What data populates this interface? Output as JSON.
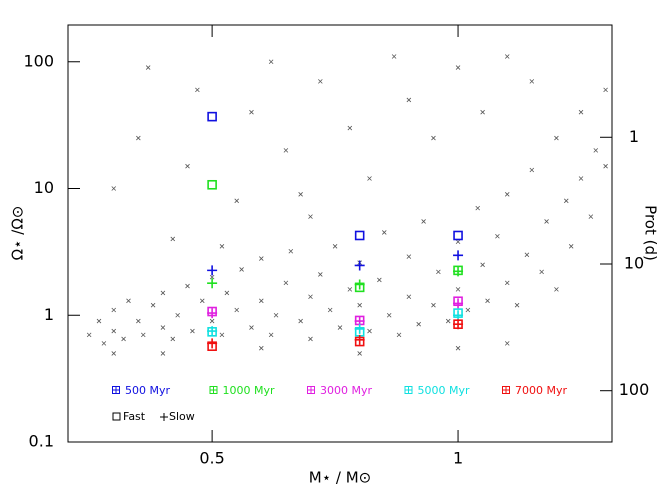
{
  "chart_data": {
    "type": "scatter",
    "xlabel": "M⋆ / M⊙",
    "ylabel": "Ω⋆ /Ω⊙",
    "y2label": "Prot (d)",
    "xlim": [
      0.207,
      1.313
    ],
    "ylim": [
      0.1,
      195
    ],
    "y2lim": [
      0.13,
      254
    ],
    "xticks": [
      0.5,
      1
    ],
    "yticks": [
      0.1,
      1,
      10,
      100
    ],
    "y2ticks": [
      1,
      10,
      100
    ],
    "ylog": true,
    "y2log": true,
    "y2inverted": true,
    "background": {
      "color": "#555555",
      "x": [
        0.25,
        0.27,
        0.28,
        0.3,
        0.3,
        0.32,
        0.33,
        0.35,
        0.36,
        0.38,
        0.4,
        0.4,
        0.42,
        0.43,
        0.45,
        0.46,
        0.48,
        0.5,
        0.5,
        0.52,
        0.53,
        0.55,
        0.56,
        0.58,
        0.6,
        0.6,
        0.62,
        0.63,
        0.65,
        0.66,
        0.68,
        0.7,
        0.7,
        0.72,
        0.74,
        0.75,
        0.76,
        0.78,
        0.8,
        0.8,
        0.82,
        0.84,
        0.85,
        0.86,
        0.88,
        0.9,
        0.9,
        0.92,
        0.93,
        0.95,
        0.96,
        0.98,
        1.0,
        1.0,
        1.02,
        1.04,
        1.05,
        1.06,
        1.08,
        1.1,
        1.1,
        1.12,
        1.14,
        1.15,
        1.17,
        1.18,
        1.2,
        1.2,
        1.22,
        1.23,
        1.25,
        1.25,
        1.27,
        1.28,
        1.3,
        1.3,
        0.3,
        0.35,
        0.37,
        0.42,
        0.45,
        0.47,
        0.55,
        0.58,
        0.62,
        0.65,
        0.7,
        0.72,
        0.78,
        0.82,
        0.87,
        0.9,
        0.95,
        1.0,
        1.05,
        1.1,
        1.15,
        0.52,
        0.68,
        0.4,
        0.6,
        0.8,
        1.0,
        1.1,
        0.3
      ],
      "y": [
        0.7,
        0.9,
        0.6,
        1.1,
        0.75,
        0.65,
        1.3,
        0.9,
        0.7,
        1.2,
        1.5,
        0.8,
        0.65,
        1.0,
        1.7,
        0.75,
        1.3,
        2.0,
        0.9,
        0.7,
        1.5,
        1.1,
        2.3,
        0.8,
        1.3,
        2.8,
        0.7,
        1.0,
        1.8,
        3.2,
        0.9,
        1.4,
        0.65,
        2.1,
        1.1,
        3.5,
        0.8,
        1.6,
        1.2,
        2.6,
        0.75,
        1.9,
        4.5,
        1.0,
        0.7,
        1.4,
        2.9,
        0.85,
        5.5,
        1.2,
        2.2,
        0.9,
        1.6,
        3.8,
        1.1,
        7,
        2.5,
        1.3,
        4.2,
        1.8,
        9,
        1.2,
        3,
        14,
        2.2,
        5.5,
        25,
        1.6,
        8,
        3.5,
        40,
        12,
        6,
        20,
        60,
        15,
        10,
        25,
        90,
        4,
        15,
        60,
        8,
        40,
        100,
        20,
        6,
        70,
        30,
        12,
        110,
        50,
        25,
        90,
        40,
        110,
        70,
        3.5,
        9,
        0.5,
        0.55,
        0.5,
        0.55,
        0.6,
        0.5
      ]
    },
    "series": [
      {
        "name": "500 Myr",
        "color": "#1010e0",
        "x": [
          0.5,
          0.8,
          1
        ],
        "fast": [
          36.9,
          4.26,
          4.26
        ],
        "slow": [
          2.26,
          2.47,
          2.97
        ]
      },
      {
        "name": "1000 Myr",
        "color": "#20e020",
        "x": [
          0.5,
          0.8,
          1
        ],
        "fast": [
          10.7,
          1.66,
          2.26
        ],
        "slow": [
          1.79,
          1.75,
          2.22
        ]
      },
      {
        "name": "3000 Myr",
        "color": "#e020e0",
        "x": [
          0.5,
          0.8,
          1
        ],
        "fast": [
          1.07,
          0.91,
          1.29
        ],
        "slow": [
          1.04,
          0.9,
          1.24
        ]
      },
      {
        "name": "5000 Myr",
        "color": "#10e0e0",
        "x": [
          0.5,
          0.8,
          1
        ],
        "fast": [
          0.74,
          0.74,
          1.04
        ],
        "slow": [
          0.75,
          0.78,
          1.0
        ]
      },
      {
        "name": "7000 Myr",
        "color": "#f01010",
        "x": [
          0.5,
          0.8,
          1
        ],
        "fast": [
          0.57,
          0.62,
          0.85
        ],
        "slow": [
          0.6,
          0.64,
          0.85
        ]
      }
    ],
    "markers": {
      "fast": "Fast",
      "slow": "Slow"
    }
  }
}
